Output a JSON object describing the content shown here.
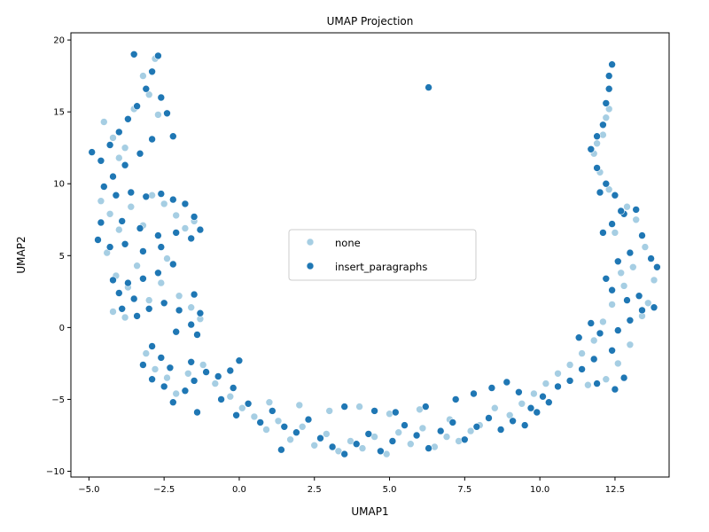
{
  "chart_data": {
    "type": "scatter",
    "title": "UMAP Projection",
    "xlabel": "UMAP1",
    "ylabel": "UMAP2",
    "xlim": [
      -5.6,
      14.3
    ],
    "ylim": [
      -10.4,
      20.5
    ],
    "xticks": [
      -5.0,
      -2.5,
      0.0,
      2.5,
      5.0,
      7.5,
      10.0,
      12.5
    ],
    "xtick_labels": [
      "−5.0",
      "−2.5",
      "0.0",
      "2.5",
      "5.0",
      "7.5",
      "10.0",
      "12.5"
    ],
    "yticks": [
      -10,
      -5,
      0,
      5,
      10,
      15,
      20
    ],
    "ytick_labels": [
      "−10",
      "−5",
      "0",
      "5",
      "10",
      "15",
      "20"
    ],
    "grid": false,
    "legend_position": "center",
    "series": [
      {
        "name": "none",
        "color": "#a6cee3",
        "points": [
          [
            -4.5,
            14.3
          ],
          [
            -4.2,
            13.2
          ],
          [
            -4.0,
            11.8
          ],
          [
            -3.8,
            12.5
          ],
          [
            -3.5,
            15.2
          ],
          [
            -3.2,
            17.5
          ],
          [
            -3.0,
            16.2
          ],
          [
            -2.8,
            18.7
          ],
          [
            -2.7,
            14.8
          ],
          [
            -4.6,
            8.8
          ],
          [
            -4.3,
            7.9
          ],
          [
            -4.0,
            6.8
          ],
          [
            -3.6,
            8.4
          ],
          [
            -3.2,
            7.1
          ],
          [
            -2.9,
            9.2
          ],
          [
            -2.5,
            8.6
          ],
          [
            -2.1,
            7.8
          ],
          [
            -1.8,
            6.9
          ],
          [
            -1.5,
            7.4
          ],
          [
            -4.4,
            5.2
          ],
          [
            -4.1,
            3.6
          ],
          [
            -3.7,
            2.8
          ],
          [
            -3.4,
            4.3
          ],
          [
            -3.0,
            1.9
          ],
          [
            -2.6,
            3.1
          ],
          [
            -2.4,
            4.8
          ],
          [
            -2.0,
            2.2
          ],
          [
            -1.6,
            1.4
          ],
          [
            -1.3,
            0.6
          ],
          [
            -4.2,
            1.1
          ],
          [
            -3.8,
            0.7
          ],
          [
            -3.1,
            -1.8
          ],
          [
            -2.8,
            -2.9
          ],
          [
            -2.4,
            -3.5
          ],
          [
            -2.1,
            -4.6
          ],
          [
            -1.7,
            -3.2
          ],
          [
            -1.2,
            -2.6
          ],
          [
            -0.8,
            -3.9
          ],
          [
            -0.3,
            -4.8
          ],
          [
            0.1,
            -5.6
          ],
          [
            0.5,
            -6.2
          ],
          [
            0.9,
            -7.1
          ],
          [
            1.3,
            -6.5
          ],
          [
            1.7,
            -7.8
          ],
          [
            2.1,
            -6.9
          ],
          [
            2.5,
            -8.2
          ],
          [
            2.9,
            -7.4
          ],
          [
            3.3,
            -8.6
          ],
          [
            3.7,
            -7.9
          ],
          [
            4.1,
            -8.4
          ],
          [
            4.5,
            -7.6
          ],
          [
            4.9,
            -8.8
          ],
          [
            5.3,
            -7.3
          ],
          [
            5.7,
            -8.1
          ],
          [
            6.1,
            -7.0
          ],
          [
            6.5,
            -8.3
          ],
          [
            6.9,
            -7.6
          ],
          [
            7.3,
            -7.9
          ],
          [
            7.7,
            -7.2
          ],
          [
            1.0,
            -5.2
          ],
          [
            2.0,
            -5.4
          ],
          [
            3.0,
            -5.8
          ],
          [
            4.0,
            -5.5
          ],
          [
            5.0,
            -6.0
          ],
          [
            6.0,
            -5.7
          ],
          [
            7.0,
            -6.4
          ],
          [
            8.0,
            -6.8
          ],
          [
            8.5,
            -5.6
          ],
          [
            9.0,
            -6.1
          ],
          [
            9.4,
            -5.3
          ],
          [
            9.8,
            -4.6
          ],
          [
            10.2,
            -3.9
          ],
          [
            10.6,
            -3.2
          ],
          [
            11.0,
            -2.6
          ],
          [
            11.4,
            -1.8
          ],
          [
            11.8,
            -0.9
          ],
          [
            12.1,
            0.4
          ],
          [
            12.4,
            1.6
          ],
          [
            12.8,
            2.9
          ],
          [
            13.1,
            4.2
          ],
          [
            13.5,
            5.6
          ],
          [
            13.8,
            3.3
          ],
          [
            13.4,
            0.8
          ],
          [
            13.0,
            -1.2
          ],
          [
            12.6,
            -2.5
          ],
          [
            12.2,
            -3.6
          ],
          [
            11.6,
            -4.0
          ],
          [
            13.2,
            7.5
          ],
          [
            12.9,
            8.4
          ],
          [
            12.3,
            9.6
          ],
          [
            12.0,
            10.8
          ],
          [
            11.8,
            12.1
          ],
          [
            12.1,
            13.4
          ],
          [
            12.2,
            14.6
          ],
          [
            12.3,
            15.2
          ],
          [
            11.9,
            12.8
          ],
          [
            12.5,
            6.6
          ],
          [
            12.7,
            3.8
          ],
          [
            13.6,
            1.7
          ]
        ]
      },
      {
        "name": "insert_paragraphs",
        "color": "#1f77b4",
        "points": [
          [
            6.3,
            16.7
          ],
          [
            -4.9,
            12.2
          ],
          [
            -4.6,
            11.6
          ],
          [
            -4.3,
            12.7
          ],
          [
            -4.0,
            13.6
          ],
          [
            -3.7,
            14.5
          ],
          [
            -3.4,
            15.4
          ],
          [
            -3.1,
            16.6
          ],
          [
            -2.9,
            17.8
          ],
          [
            -2.7,
            18.9
          ],
          [
            -3.5,
            19.0
          ],
          [
            -2.6,
            16.0
          ],
          [
            -2.4,
            14.9
          ],
          [
            -2.2,
            13.3
          ],
          [
            -2.9,
            13.1
          ],
          [
            -3.3,
            12.1
          ],
          [
            -3.8,
            11.3
          ],
          [
            -4.2,
            10.5
          ],
          [
            -4.5,
            9.8
          ],
          [
            -4.1,
            9.2
          ],
          [
            -3.6,
            9.4
          ],
          [
            -3.1,
            9.1
          ],
          [
            -2.6,
            9.3
          ],
          [
            -2.2,
            8.9
          ],
          [
            -1.8,
            8.6
          ],
          [
            -1.5,
            7.7
          ],
          [
            -1.3,
            6.8
          ],
          [
            -1.6,
            6.2
          ],
          [
            -2.1,
            6.6
          ],
          [
            -2.7,
            6.4
          ],
          [
            -3.3,
            6.9
          ],
          [
            -3.9,
            7.4
          ],
          [
            -4.6,
            7.3
          ],
          [
            -4.7,
            6.1
          ],
          [
            -4.3,
            5.6
          ],
          [
            -3.8,
            5.8
          ],
          [
            -3.2,
            5.3
          ],
          [
            -2.6,
            5.6
          ],
          [
            -2.2,
            4.4
          ],
          [
            -2.7,
            3.8
          ],
          [
            -3.2,
            3.4
          ],
          [
            -3.7,
            3.1
          ],
          [
            -4.2,
            3.3
          ],
          [
            -4.0,
            2.4
          ],
          [
            -3.5,
            2.0
          ],
          [
            -3.0,
            1.3
          ],
          [
            -2.5,
            1.7
          ],
          [
            -2.0,
            1.2
          ],
          [
            -1.5,
            2.3
          ],
          [
            -1.3,
            1.0
          ],
          [
            -1.6,
            0.2
          ],
          [
            -2.1,
            -0.3
          ],
          [
            -1.4,
            -0.5
          ],
          [
            -3.9,
            1.3
          ],
          [
            -3.4,
            0.8
          ],
          [
            -2.9,
            -1.3
          ],
          [
            -3.2,
            -2.6
          ],
          [
            -2.6,
            -2.1
          ],
          [
            -2.3,
            -2.8
          ],
          [
            -2.9,
            -3.6
          ],
          [
            -2.5,
            -4.1
          ],
          [
            -2.2,
            -5.2
          ],
          [
            -1.8,
            -4.4
          ],
          [
            -1.5,
            -3.7
          ],
          [
            -1.6,
            -2.4
          ],
          [
            -1.1,
            -3.1
          ],
          [
            -0.7,
            -3.4
          ],
          [
            -0.3,
            -3.0
          ],
          [
            0.0,
            -2.3
          ],
          [
            -0.2,
            -4.2
          ],
          [
            -0.6,
            -5.0
          ],
          [
            -1.4,
            -5.9
          ],
          [
            -0.1,
            -6.1
          ],
          [
            0.3,
            -5.3
          ],
          [
            0.7,
            -6.6
          ],
          [
            1.1,
            -5.8
          ],
          [
            1.5,
            -6.9
          ],
          [
            1.4,
            -8.5
          ],
          [
            1.9,
            -7.3
          ],
          [
            2.3,
            -6.4
          ],
          [
            2.7,
            -7.7
          ],
          [
            3.1,
            -8.3
          ],
          [
            3.5,
            -8.8
          ],
          [
            3.9,
            -8.1
          ],
          [
            4.3,
            -7.4
          ],
          [
            4.7,
            -8.6
          ],
          [
            5.1,
            -7.9
          ],
          [
            5.5,
            -6.8
          ],
          [
            5.2,
            -5.9
          ],
          [
            5.9,
            -7.5
          ],
          [
            6.3,
            -8.4
          ],
          [
            6.7,
            -7.2
          ],
          [
            7.1,
            -6.6
          ],
          [
            7.5,
            -7.8
          ],
          [
            7.9,
            -6.9
          ],
          [
            8.3,
            -6.3
          ],
          [
            8.7,
            -7.1
          ],
          [
            9.1,
            -6.5
          ],
          [
            9.5,
            -6.8
          ],
          [
            9.9,
            -5.9
          ],
          [
            10.3,
            -5.2
          ],
          [
            3.5,
            -5.5
          ],
          [
            4.5,
            -5.8
          ],
          [
            6.2,
            -5.5
          ],
          [
            7.2,
            -5.0
          ],
          [
            7.8,
            -4.6
          ],
          [
            8.4,
            -4.2
          ],
          [
            8.9,
            -3.8
          ],
          [
            9.3,
            -4.5
          ],
          [
            9.7,
            -5.6
          ],
          [
            10.1,
            -4.8
          ],
          [
            10.6,
            -4.1
          ],
          [
            11.0,
            -3.7
          ],
          [
            11.4,
            -2.9
          ],
          [
            11.8,
            -2.2
          ],
          [
            11.9,
            -3.9
          ],
          [
            12.5,
            -4.3
          ],
          [
            12.8,
            -3.5
          ],
          [
            12.4,
            -1.6
          ],
          [
            11.3,
            -0.7
          ],
          [
            11.7,
            0.3
          ],
          [
            12.0,
            -0.4
          ],
          [
            12.6,
            -0.2
          ],
          [
            13.0,
            0.5
          ],
          [
            13.4,
            1.2
          ],
          [
            13.8,
            1.4
          ],
          [
            13.3,
            2.2
          ],
          [
            12.9,
            1.9
          ],
          [
            12.4,
            2.6
          ],
          [
            12.2,
            3.4
          ],
          [
            12.6,
            4.6
          ],
          [
            13.0,
            5.2
          ],
          [
            13.4,
            6.4
          ],
          [
            13.7,
            4.8
          ],
          [
            13.9,
            4.2
          ],
          [
            13.2,
            8.2
          ],
          [
            12.8,
            7.9
          ],
          [
            12.4,
            7.2
          ],
          [
            12.1,
            6.6
          ],
          [
            12.5,
            9.2
          ],
          [
            12.2,
            10.0
          ],
          [
            11.9,
            11.1
          ],
          [
            11.7,
            12.4
          ],
          [
            11.9,
            13.3
          ],
          [
            12.1,
            14.1
          ],
          [
            12.2,
            15.6
          ],
          [
            12.3,
            16.6
          ],
          [
            12.3,
            17.5
          ],
          [
            12.4,
            18.3
          ],
          [
            12.0,
            9.4
          ],
          [
            12.7,
            8.1
          ]
        ]
      }
    ]
  }
}
